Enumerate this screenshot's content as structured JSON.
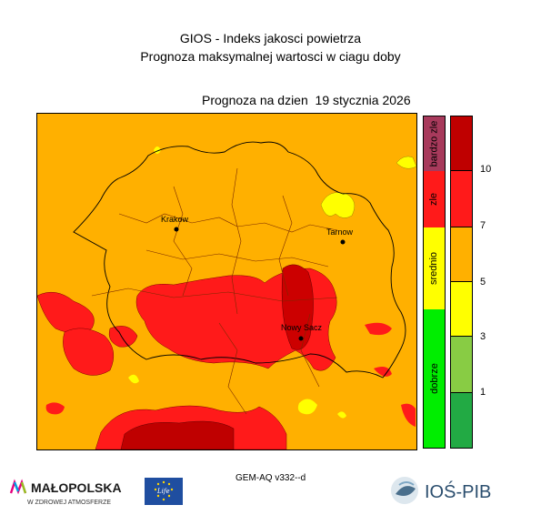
{
  "title": {
    "line1": "GIOS - Indeks jakosci powietrza",
    "line2": "Prognoza maksymalnej wartosci w ciagu doby"
  },
  "subtitle": "Prognoza na dzien  19 stycznia 2026",
  "cities": [
    {
      "name": "Krakow"
    },
    {
      "name": "Tarnow"
    },
    {
      "name": "Nowy Sacz"
    }
  ],
  "categories": [
    {
      "label": "bardzo zle",
      "color": "#a83a5c"
    },
    {
      "label": "zle",
      "color": "#ff1a1a"
    },
    {
      "label": "srednio",
      "color": "#ffff00"
    },
    {
      "label": "dobrze",
      "color": "#00ee00"
    }
  ],
  "scale": {
    "colors": [
      "#bf0000",
      "#ff1a1a",
      "#ffb000",
      "#ffff00",
      "#88cc44",
      "#22aa44"
    ],
    "ticks": [
      "10",
      "7",
      "5",
      "3",
      "1"
    ]
  },
  "footer": "GEM-AQ v332--d",
  "logos": {
    "malopolska_name": "MAŁOPOLSKA",
    "malopolska_tagline": "W ZDROWEJ ATMOSFERZE",
    "eu_text": "Life",
    "ios_text": "IOŚ-PIB"
  }
}
